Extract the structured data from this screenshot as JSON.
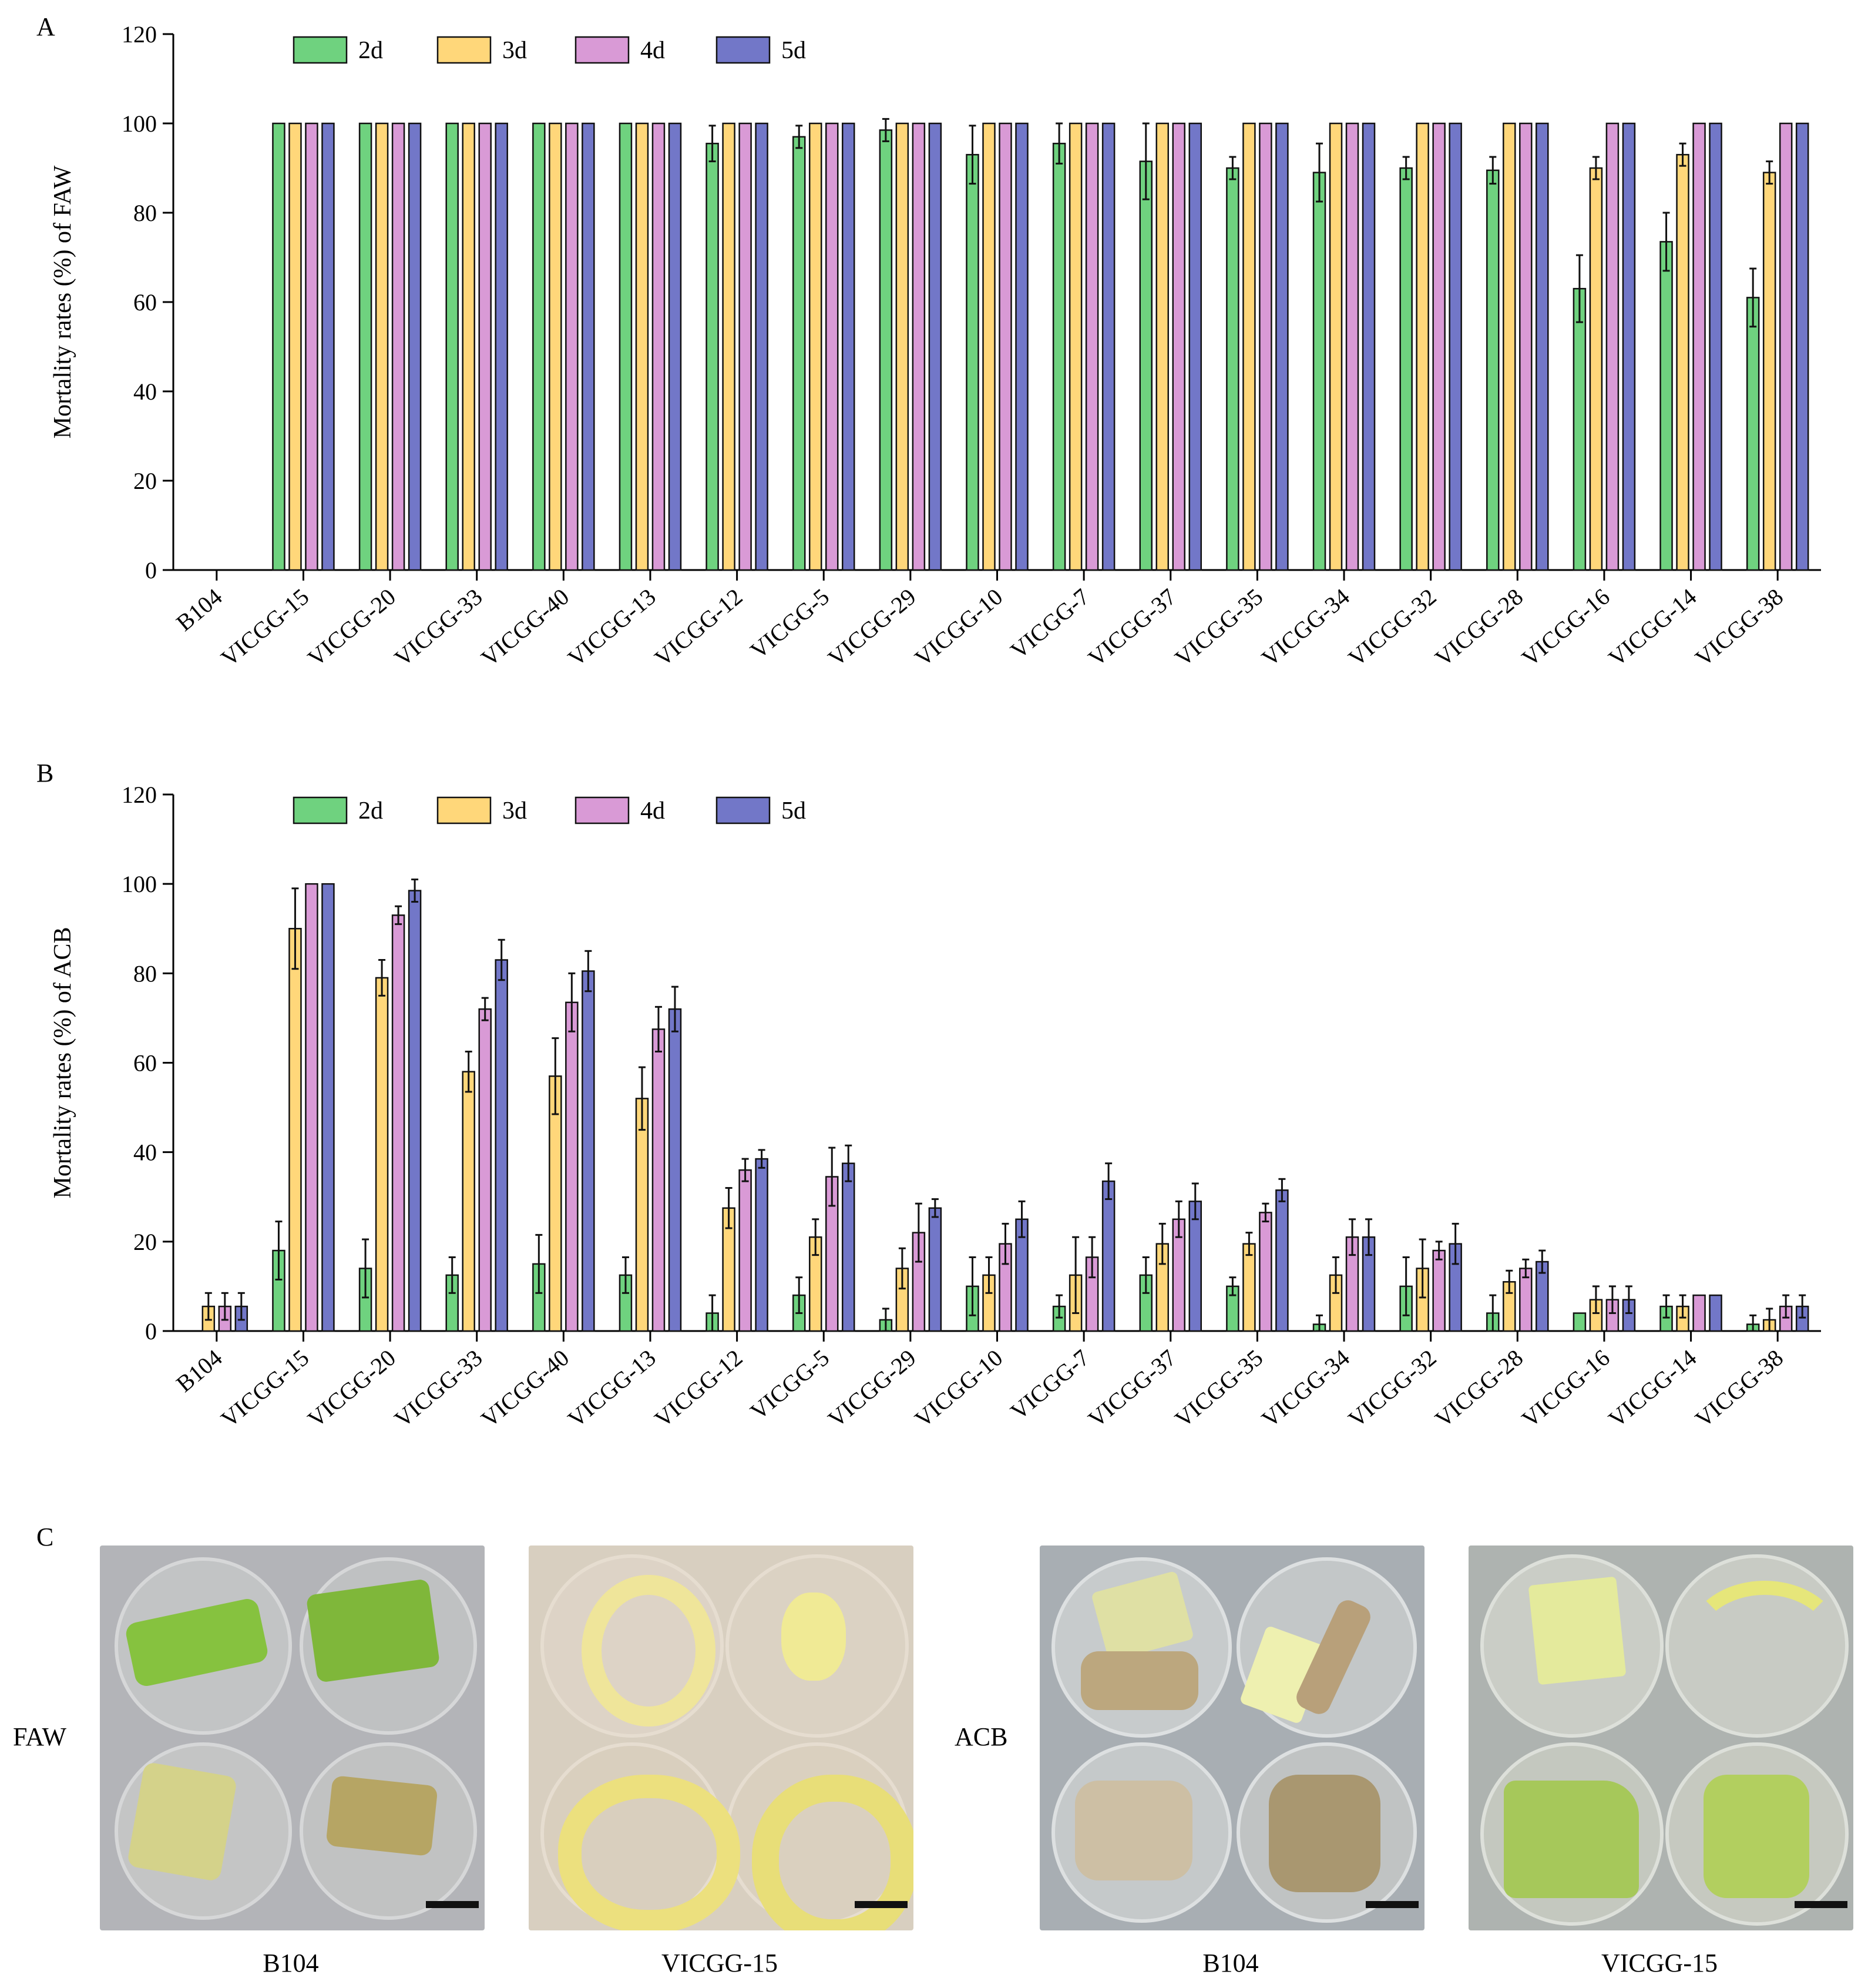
{
  "panels": {
    "a": "A",
    "b": "B",
    "c": "C"
  },
  "colors": {
    "2d": "#6fd27f",
    "3d": "#ffd77a",
    "4d": "#d99ad6",
    "5d": "#7277c8",
    "axis": "#000000",
    "error": "#111111"
  },
  "chart_data": [
    {
      "type": "bar",
      "ylabel": "Mortality rates (%) of FAW",
      "ylim": [
        0,
        120
      ],
      "yticks": [
        0,
        20,
        40,
        60,
        80,
        100,
        120
      ],
      "legend": "top-left",
      "categories": [
        "B104",
        "VICGG-15",
        "VICGG-20",
        "VICGG-33",
        "VICGG-40",
        "VICGG-13",
        "VICGG-12",
        "VICGG-5",
        "VICGG-29",
        "VICGG-10",
        "VICGG-7",
        "VICGG-37",
        "VICGG-35",
        "VICGG-34",
        "VICGG-32",
        "VICGG-28",
        "VICGG-16",
        "VICGG-14",
        "VICGG-38"
      ],
      "series": [
        {
          "name": "2d",
          "values": [
            0,
            100,
            100,
            100,
            100,
            100,
            95.5,
            97,
            98.5,
            93,
            95.5,
            91.5,
            90,
            89,
            90,
            89.5,
            63,
            73.5,
            61
          ],
          "errors": [
            0,
            0,
            0,
            0,
            0,
            0,
            4,
            2.5,
            2.5,
            6.5,
            4.5,
            8.5,
            2.5,
            6.5,
            2.5,
            3,
            7.5,
            6.5,
            6.5
          ]
        },
        {
          "name": "3d",
          "values": [
            0,
            100,
            100,
            100,
            100,
            100,
            100,
            100,
            100,
            100,
            100,
            100,
            100,
            100,
            100,
            100,
            90,
            93,
            89
          ],
          "errors": [
            0,
            0,
            0,
            0,
            0,
            0,
            0,
            0,
            0,
            0,
            0,
            0,
            0,
            0,
            0,
            0,
            2.5,
            2.5,
            2.5
          ]
        },
        {
          "name": "4d",
          "values": [
            0,
            100,
            100,
            100,
            100,
            100,
            100,
            100,
            100,
            100,
            100,
            100,
            100,
            100,
            100,
            100,
            100,
            100,
            100
          ],
          "errors": [
            0,
            0,
            0,
            0,
            0,
            0,
            0,
            0,
            0,
            0,
            0,
            0,
            0,
            0,
            0,
            0,
            0,
            0,
            0
          ]
        },
        {
          "name": "5d",
          "values": [
            0,
            100,
            100,
            100,
            100,
            100,
            100,
            100,
            100,
            100,
            100,
            100,
            100,
            100,
            100,
            100,
            100,
            100,
            100
          ],
          "errors": [
            0,
            0,
            0,
            0,
            0,
            0,
            0,
            0,
            0,
            0,
            0,
            0,
            0,
            0,
            0,
            0,
            0,
            0,
            0
          ]
        }
      ]
    },
    {
      "type": "bar",
      "ylabel": "Mortality rates (%) of ACB",
      "ylim": [
        0,
        120
      ],
      "yticks": [
        0,
        20,
        40,
        60,
        80,
        100,
        120
      ],
      "legend": "top-left",
      "categories": [
        "B104",
        "VICGG-15",
        "VICGG-20",
        "VICGG-33",
        "VICGG-40",
        "VICGG-13",
        "VICGG-12",
        "VICGG-5",
        "VICGG-29",
        "VICGG-10",
        "VICGG-7",
        "VICGG-37",
        "VICGG-35",
        "VICGG-34",
        "VICGG-32",
        "VICGG-28",
        "VICGG-16",
        "VICGG-14",
        "VICGG-38"
      ],
      "series": [
        {
          "name": "2d",
          "values": [
            0,
            18,
            14,
            12.5,
            15,
            12.5,
            4,
            8,
            2.5,
            10,
            5.5,
            12.5,
            10,
            1.5,
            10,
            4,
            4,
            5.5,
            1.5
          ],
          "errors": [
            0,
            6.5,
            6.5,
            4,
            6.5,
            4,
            4,
            4,
            2.5,
            6.5,
            2.5,
            4,
            2,
            2,
            6.5,
            4,
            0,
            2.5,
            2
          ]
        },
        {
          "name": "3d",
          "values": [
            5.5,
            90,
            79,
            58,
            57,
            52,
            27.5,
            21,
            14,
            12.5,
            12.5,
            19.5,
            19.5,
            12.5,
            14,
            11,
            7,
            5.5,
            2.5
          ],
          "errors": [
            3,
            9,
            4,
            4.5,
            8.5,
            7,
            4.5,
            4,
            4.5,
            4,
            8.5,
            4.5,
            2.5,
            4,
            6.5,
            2.5,
            3,
            2.5,
            2.5
          ]
        },
        {
          "name": "4d",
          "values": [
            5.5,
            100,
            93,
            72,
            73.5,
            67.5,
            36,
            34.5,
            22,
            19.5,
            16.5,
            25,
            26.5,
            21,
            18,
            14,
            7,
            8,
            5.5
          ],
          "errors": [
            3,
            0,
            2,
            2.5,
            6.5,
            5,
            2.5,
            6.5,
            6.5,
            4.5,
            4.5,
            4,
            2,
            4,
            2,
            2,
            3,
            0,
            2.5
          ]
        },
        {
          "name": "5d",
          "values": [
            5.5,
            100,
            98.5,
            83,
            80.5,
            72,
            38.5,
            37.5,
            27.5,
            25,
            33.5,
            29,
            31.5,
            21,
            19.5,
            15.5,
            7,
            8,
            5.5
          ],
          "errors": [
            3,
            0,
            2.5,
            4.5,
            4.5,
            5,
            2,
            4,
            2,
            4,
            4,
            4,
            2.5,
            4,
            4.5,
            2.5,
            3,
            0,
            2.5
          ]
        }
      ]
    }
  ],
  "photos": {
    "row1_label": "FAW",
    "row2_label": "ACB",
    "captions": [
      "B104",
      "VICGG-15",
      "B104",
      "VICGG-15"
    ]
  }
}
